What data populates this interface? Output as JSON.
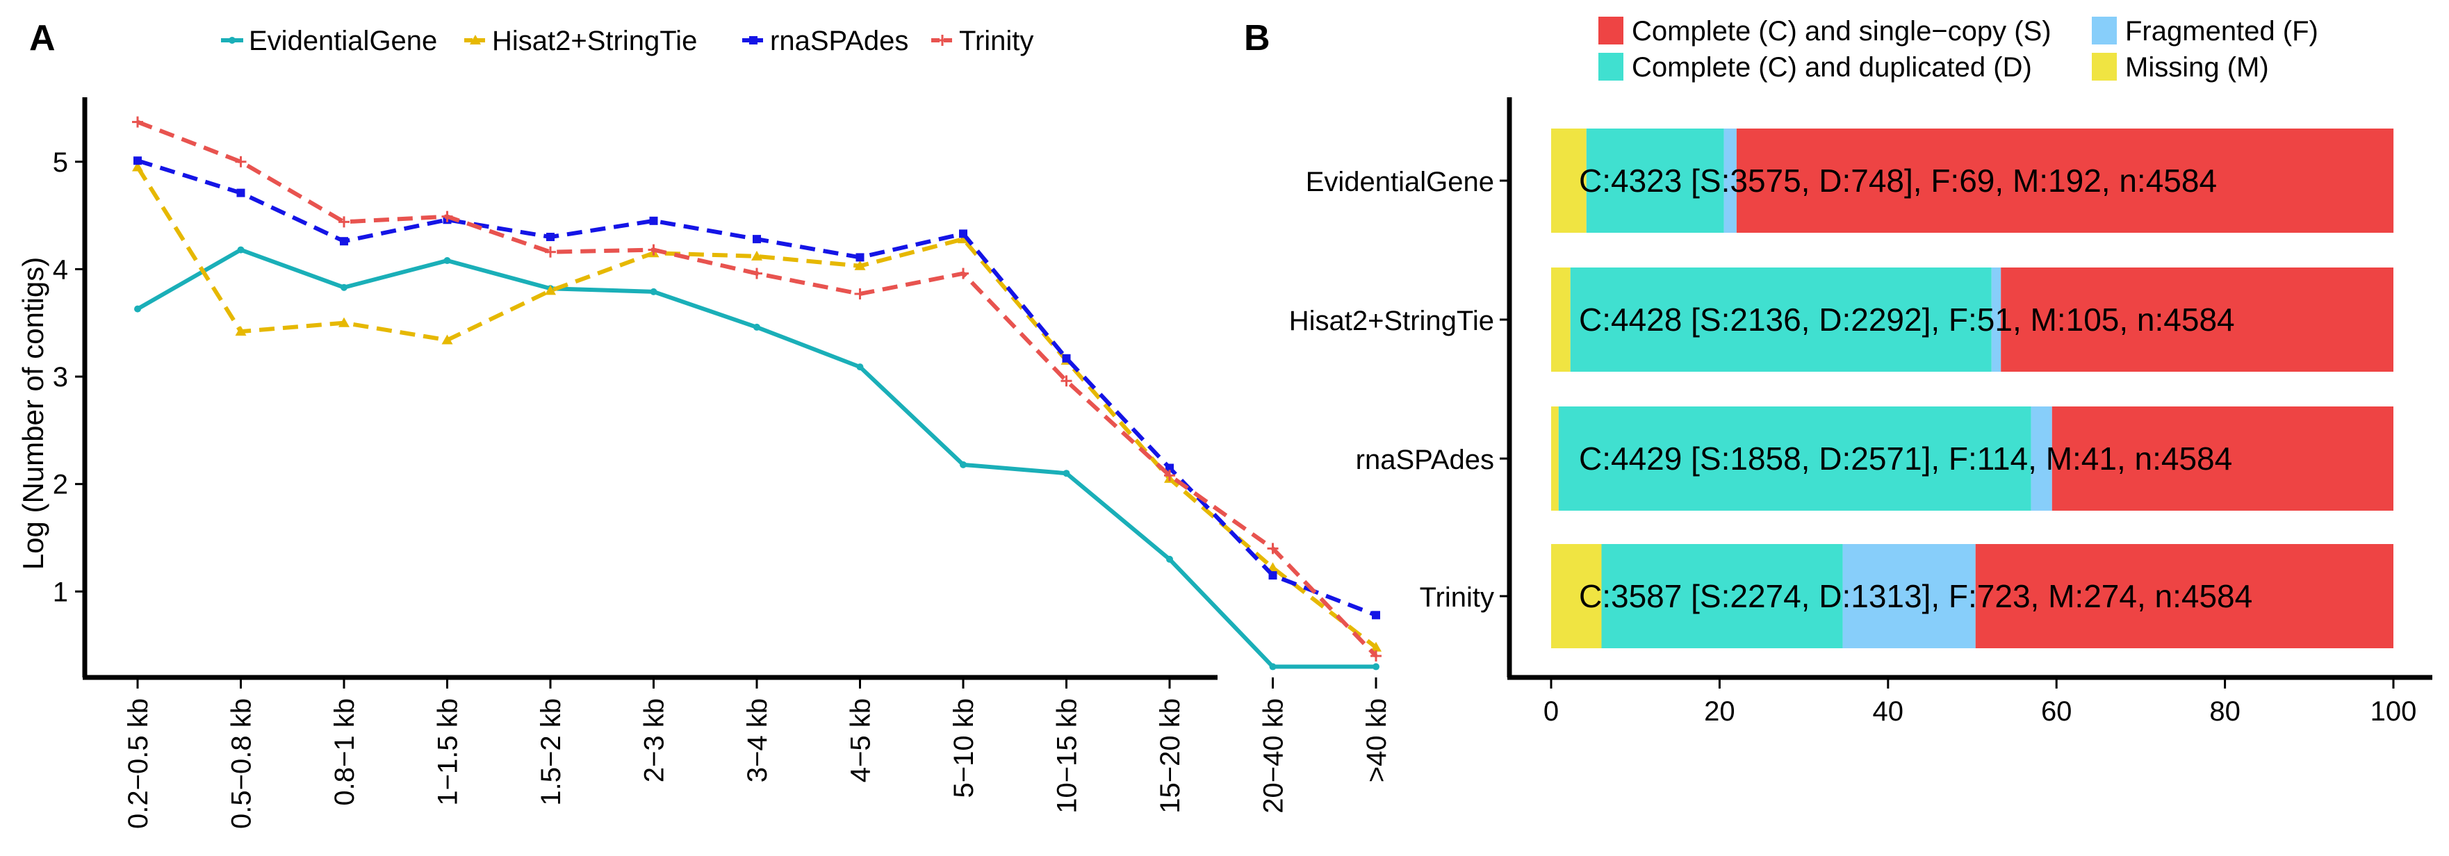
{
  "chart_data": [
    {
      "panel_label": "A",
      "type": "line",
      "xlabel": "",
      "ylabel": "Log (Number of contigs)",
      "ylim": [
        0.2,
        5.6
      ],
      "yticks": [
        1,
        2,
        3,
        4,
        5
      ],
      "categories": [
        "0.2−0.5 kb",
        "0.5−0.8 kb",
        "0.8−1 kb",
        "1−1.5 kb",
        "1.5−2 kb",
        "2−3 kb",
        "3−4 kb",
        "4−5 kb",
        "5−10 kb",
        "10−15 kb",
        "15−20 kb",
        "20−40 kb",
        ">40 kb"
      ],
      "legend_position": "top",
      "series": [
        {
          "name": "EvidentialGene",
          "color": "#1AAFB8",
          "dash": "solid",
          "marker": "circle",
          "values": [
            3.63,
            4.18,
            3.83,
            4.08,
            3.82,
            3.79,
            3.46,
            3.09,
            2.18,
            2.1,
            1.3,
            0.3,
            0.3
          ]
        },
        {
          "name": "Hisat2+StringTie",
          "color": "#E6B800",
          "dash": "dashed",
          "marker": "triangle",
          "values": [
            4.95,
            3.42,
            3.5,
            3.34,
            3.8,
            4.15,
            4.12,
            4.03,
            4.28,
            3.15,
            2.05,
            1.22,
            0.48
          ]
        },
        {
          "name": "rnaSPAdes",
          "color": "#1414E6",
          "dash": "dashed",
          "marker": "square",
          "values": [
            5.01,
            4.71,
            4.26,
            4.46,
            4.3,
            4.45,
            4.28,
            4.11,
            4.33,
            3.17,
            2.15,
            1.15,
            0.78
          ]
        },
        {
          "name": "Trinity",
          "color": "#E8534F",
          "dash": "dashed",
          "marker": "plus",
          "values": [
            5.37,
            5.0,
            4.44,
            4.49,
            4.16,
            4.18,
            3.96,
            3.77,
            3.96,
            2.96,
            2.08,
            1.4,
            0.4
          ]
        }
      ]
    },
    {
      "panel_label": "B",
      "type": "bar",
      "orientation": "horizontal",
      "stacked": true,
      "xlim": [
        0,
        100
      ],
      "xticks": [
        0,
        20,
        40,
        60,
        80,
        100
      ],
      "categories": [
        "EvidentialGene",
        "Hisat2+StringTie",
        "rnaSPAdes",
        "Trinity"
      ],
      "legend_position": "top",
      "series": [
        {
          "name": "Missing (M)",
          "color": "#F0E442",
          "values": [
            4.19,
            2.29,
            0.89,
            5.98
          ]
        },
        {
          "name": "Complete (C) and duplicated (D)",
          "color": "#40E0D0",
          "values": [
            16.32,
            50.0,
            56.09,
            28.64
          ]
        },
        {
          "name": "Fragmented (F)",
          "color": "#87CEFA",
          "values": [
            1.51,
            1.11,
            2.49,
            15.77
          ]
        },
        {
          "name": "Complete (C) and single−copy (S)",
          "color": "#EE4444",
          "values": [
            77.99,
            46.6,
            40.53,
            49.61
          ]
        }
      ],
      "legend_order": [
        "Complete (C) and single−copy (S)",
        "Fragmented (F)",
        "Complete (C) and duplicated (D)",
        "Missing (M)"
      ],
      "bar_labels": [
        "C:4323 [S:3575, D:748], F:69, M:192, n:4584",
        "C:4428 [S:2136, D:2292], F:51, M:105, n:4584",
        "C:4429 [S:1858, D:2571], F:114, M:41, n:4584",
        "C:3587 [S:2274, D:1313], F:723, M:274, n:4584"
      ]
    }
  ]
}
